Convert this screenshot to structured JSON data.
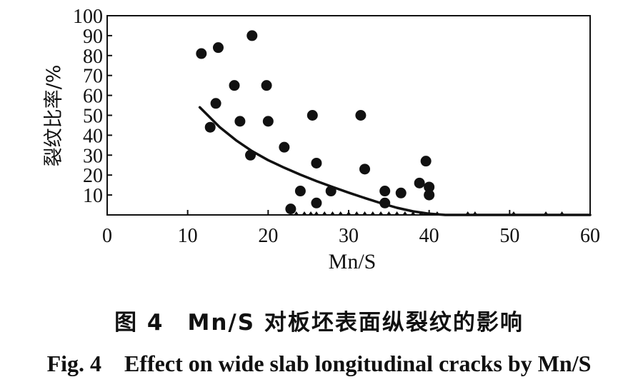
{
  "chart_data": {
    "type": "scatter",
    "title": "",
    "xlabel": "Mn/S",
    "ylabel": "裂纹比率/%",
    "xlim": [
      0,
      60
    ],
    "ylim": [
      0,
      100
    ],
    "x_ticks": [
      "0",
      "10",
      "20",
      "30",
      "40",
      "50",
      "60"
    ],
    "y_ticks": [
      "10",
      "20",
      "30",
      "40",
      "50",
      "60",
      "70",
      "80",
      "90",
      "100"
    ],
    "grid": false,
    "legend": "none",
    "series": [
      {
        "marker": "filled-circle",
        "color": "#111111",
        "points": [
          [
            11.7,
            81
          ],
          [
            12.8,
            44
          ],
          [
            13.5,
            56
          ],
          [
            13.8,
            84
          ],
          [
            15.8,
            65
          ],
          [
            16.5,
            47
          ],
          [
            17.8,
            30
          ],
          [
            18.0,
            90
          ],
          [
            19.8,
            65
          ],
          [
            20.0,
            47
          ],
          [
            22.0,
            34
          ],
          [
            22.8,
            3
          ],
          [
            24.0,
            12
          ],
          [
            25.5,
            50
          ],
          [
            26.0,
            26
          ],
          [
            26.0,
            6
          ],
          [
            27.8,
            12
          ],
          [
            31.5,
            50
          ],
          [
            32.0,
            23
          ],
          [
            34.5,
            12
          ],
          [
            34.5,
            6
          ],
          [
            36.5,
            11
          ],
          [
            38.8,
            16
          ],
          [
            39.6,
            27
          ],
          [
            40.0,
            14
          ],
          [
            40.0,
            10
          ]
        ]
      },
      {
        "marker": "small-triangle",
        "color": "#111111",
        "points": [
          [
            23.5,
            0
          ],
          [
            24.5,
            0
          ],
          [
            25.3,
            0
          ],
          [
            26.0,
            0
          ],
          [
            27.0,
            0
          ],
          [
            28.0,
            0
          ],
          [
            29.0,
            0
          ],
          [
            30.0,
            0
          ],
          [
            31.0,
            0
          ],
          [
            32.0,
            0
          ],
          [
            33.0,
            0
          ],
          [
            34.0,
            0
          ],
          [
            35.0,
            0
          ],
          [
            36.0,
            0
          ],
          [
            37.0,
            0
          ],
          [
            38.0,
            0
          ],
          [
            39.0,
            0
          ],
          [
            40.0,
            0
          ],
          [
            41.0,
            0
          ],
          [
            44.8,
            0
          ],
          [
            45.7,
            0
          ],
          [
            50.5,
            0
          ],
          [
            54.5,
            0
          ],
          [
            56.5,
            0
          ]
        ]
      },
      {
        "type": "line",
        "color": "#111111",
        "points": [
          [
            11.5,
            54
          ],
          [
            14,
            44
          ],
          [
            16,
            37.5
          ],
          [
            18,
            32
          ],
          [
            20,
            27.5
          ],
          [
            22,
            23.7
          ],
          [
            24,
            20.2
          ],
          [
            26,
            17
          ],
          [
            28,
            14
          ],
          [
            30,
            11.2
          ],
          [
            32,
            8.5
          ],
          [
            34,
            5.9
          ],
          [
            36,
            3.6
          ],
          [
            38,
            1.8
          ],
          [
            40,
            0.6
          ],
          [
            42,
            0
          ],
          [
            44,
            0
          ],
          [
            46,
            0
          ],
          [
            48,
            0
          ],
          [
            50,
            0
          ],
          [
            52,
            0
          ],
          [
            54,
            0
          ],
          [
            56,
            0
          ],
          [
            58,
            0
          ],
          [
            60,
            0
          ]
        ]
      }
    ]
  },
  "caption": {
    "cn": "图 4　Mn/S 对板坯表面纵裂纹的影响",
    "en": "Fig. 4　Effect on wide slab longitudinal cracks by Mn/S"
  }
}
